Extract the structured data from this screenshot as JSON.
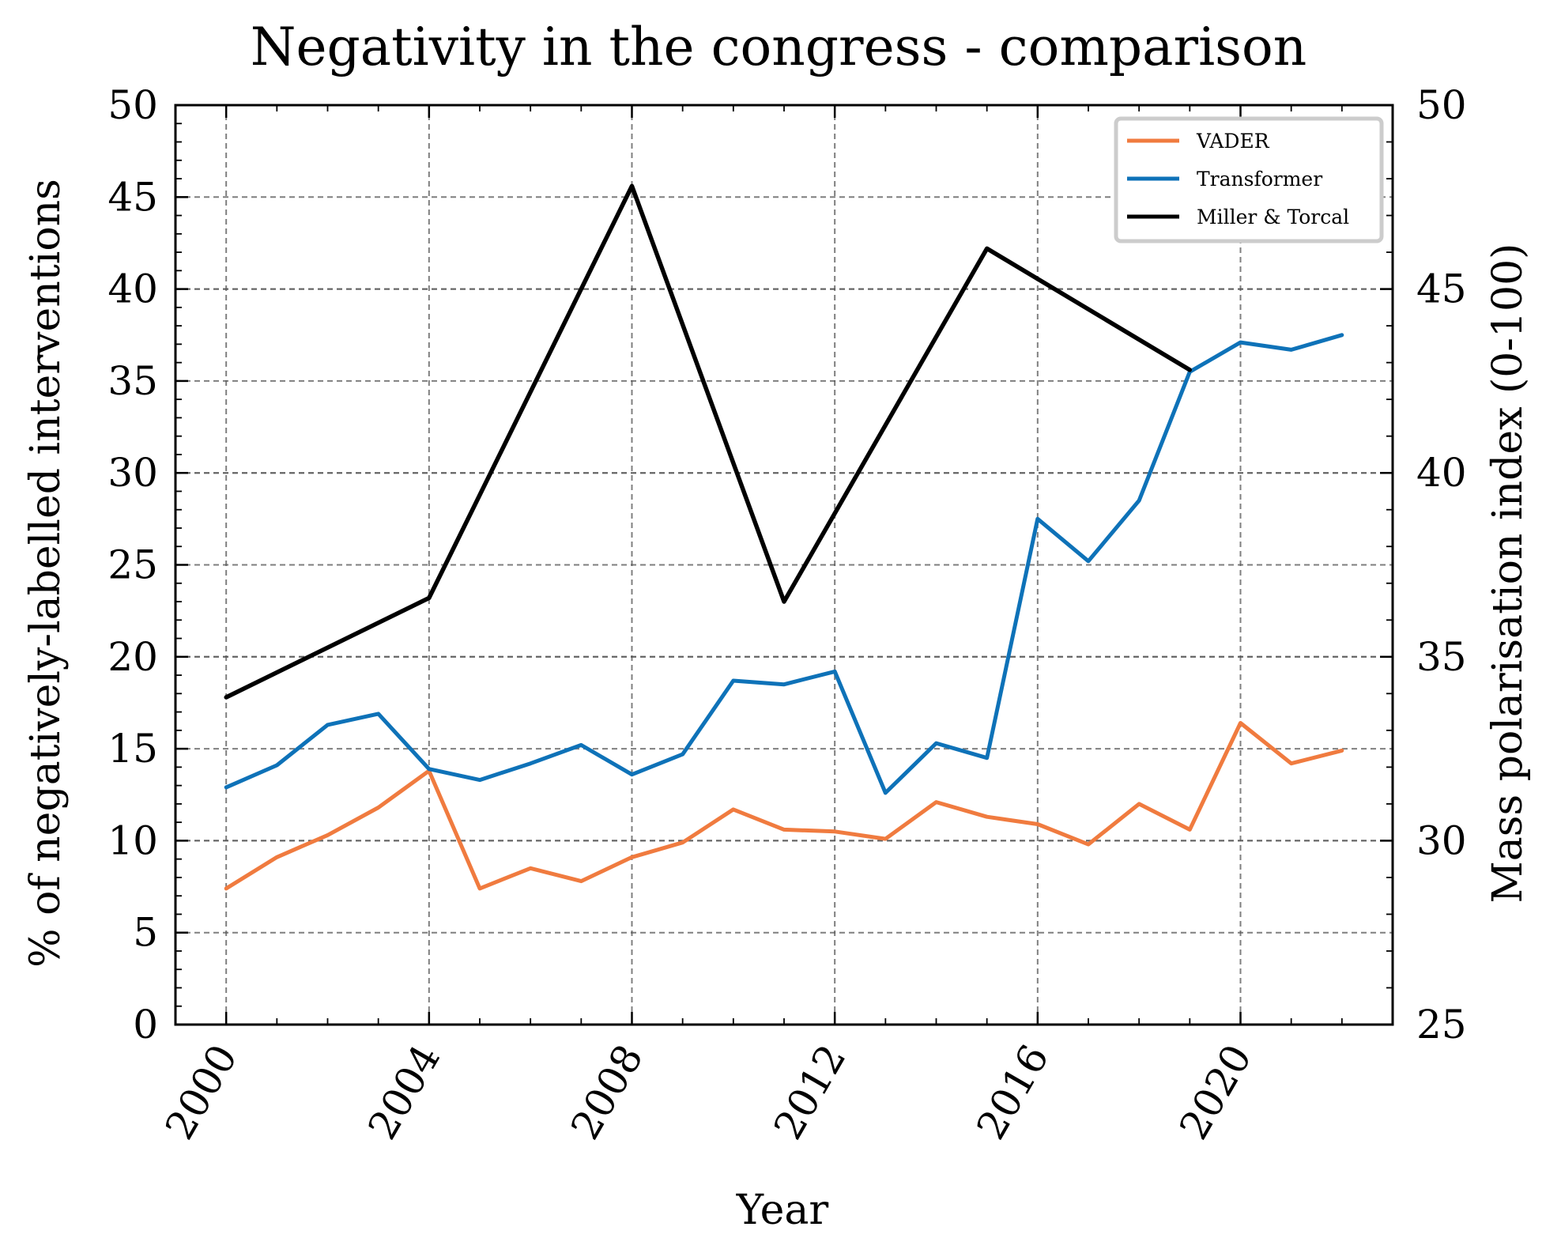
{
  "chart_data": {
    "type": "line",
    "title": "Negativity in the congress - comparison",
    "xlabel": "Year",
    "ylabel": "% of negatively-labelled interventions",
    "y2label": "Mass polarisation index (0-100)",
    "xlim": [
      1999,
      2023
    ],
    "ylim": [
      0,
      50
    ],
    "y2lim": [
      25,
      50
    ],
    "xticks": [
      2000,
      2004,
      2008,
      2012,
      2016,
      2020
    ],
    "yticks": [
      0,
      5,
      10,
      15,
      20,
      25,
      30,
      35,
      40,
      45,
      50
    ],
    "y2ticks": [
      25,
      30,
      35,
      40,
      45,
      50
    ],
    "grid": true,
    "legend_position": "top-right",
    "series": [
      {
        "name": "VADER",
        "axis": "left",
        "color": "#f07b3f",
        "x": [
          2000,
          2001,
          2002,
          2003,
          2004,
          2005,
          2006,
          2007,
          2008,
          2009,
          2010,
          2011,
          2012,
          2013,
          2014,
          2015,
          2016,
          2017,
          2018,
          2019,
          2020,
          2021,
          2022
        ],
        "y": [
          7.4,
          9.1,
          10.3,
          11.8,
          13.8,
          7.4,
          8.5,
          7.8,
          9.1,
          9.9,
          11.7,
          10.6,
          10.5,
          10.1,
          12.1,
          11.3,
          10.9,
          9.8,
          12.0,
          10.6,
          16.4,
          14.2,
          14.9
        ]
      },
      {
        "name": "Transformer",
        "axis": "left",
        "color": "#0e72b8",
        "x": [
          2000,
          2001,
          2002,
          2003,
          2004,
          2005,
          2006,
          2007,
          2008,
          2009,
          2010,
          2011,
          2012,
          2013,
          2014,
          2015,
          2016,
          2017,
          2018,
          2019,
          2020,
          2021,
          2022
        ],
        "y": [
          12.9,
          14.1,
          16.3,
          16.9,
          13.9,
          13.3,
          14.2,
          15.2,
          13.6,
          14.7,
          18.7,
          18.5,
          19.2,
          12.6,
          15.3,
          14.5,
          27.5,
          25.2,
          28.5,
          35.5,
          37.1,
          36.7,
          37.5
        ]
      },
      {
        "name": "Miller & Torcal",
        "axis": "right",
        "color": "#000000",
        "x": [
          2000,
          2004,
          2008,
          2011,
          2015,
          2019
        ],
        "y": [
          33.9,
          36.6,
          47.8,
          36.5,
          46.1,
          42.8
        ]
      }
    ]
  }
}
